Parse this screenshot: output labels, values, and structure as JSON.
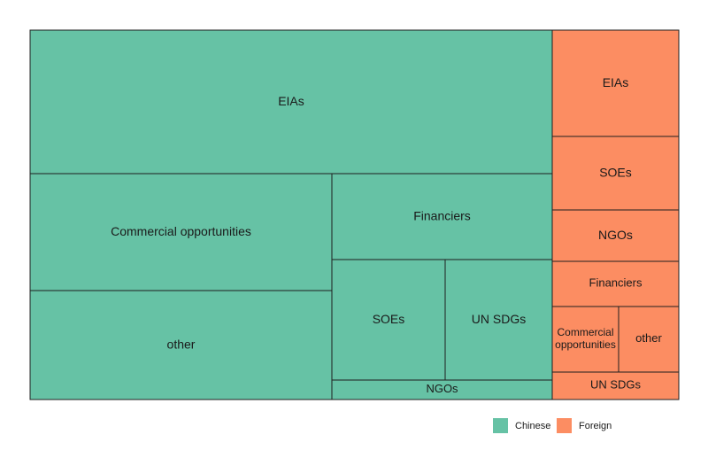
{
  "chart_data": {
    "type": "treemap",
    "title": "",
    "groups": [
      {
        "name": "Chinese",
        "color": "#66c2a5",
        "items": [
          {
            "label": "EIAs"
          },
          {
            "label": "Commercial opportunities"
          },
          {
            "label": "other"
          },
          {
            "label": "Financiers"
          },
          {
            "label": "SOEs"
          },
          {
            "label": "UN SDGs"
          },
          {
            "label": "NGOs"
          }
        ]
      },
      {
        "name": "Foreign",
        "color": "#fc8d62",
        "items": [
          {
            "label": "EIAs"
          },
          {
            "label": "SOEs"
          },
          {
            "label": "NGOs"
          },
          {
            "label": "Financiers"
          },
          {
            "label": "Commercial opportunities",
            "lines": [
              "Commercial",
              "opportunities"
            ]
          },
          {
            "label": "other"
          },
          {
            "label": "UN SDGs"
          }
        ]
      }
    ],
    "legend": {
      "position": "bottom-right",
      "entries": [
        "Chinese",
        "Foreign"
      ]
    }
  }
}
